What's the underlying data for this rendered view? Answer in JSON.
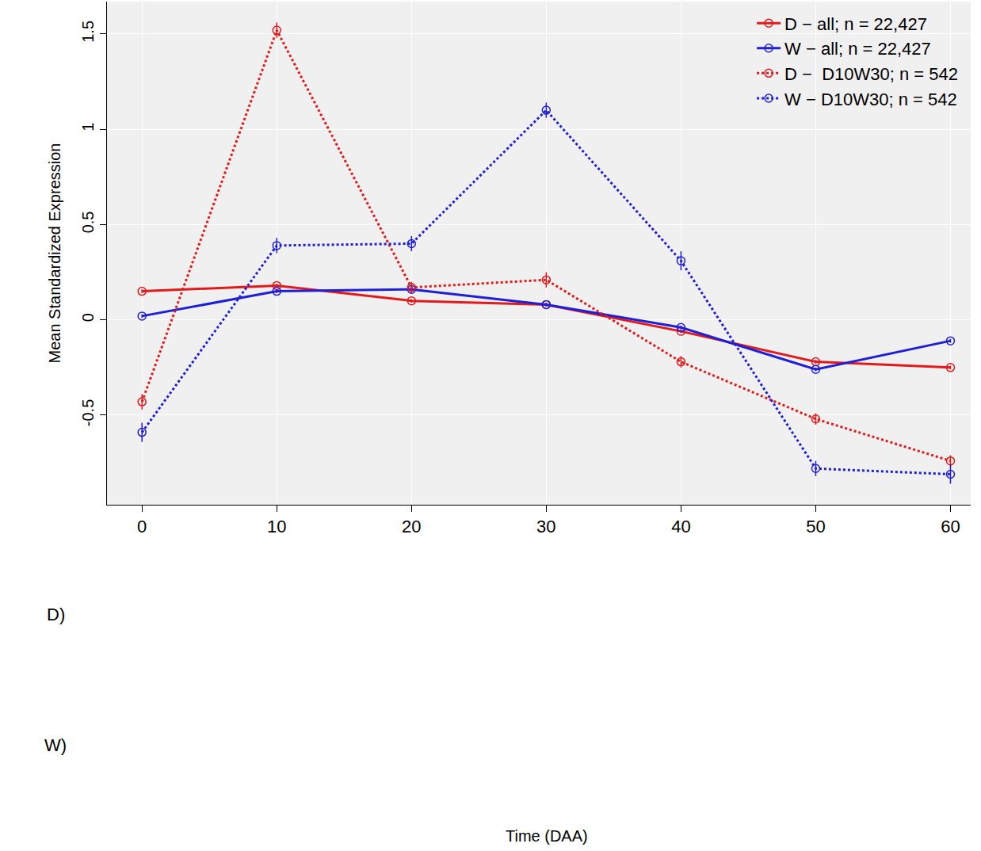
{
  "chart_data": {
    "type": "line",
    "x_label": "Time (DAA)",
    "y_label": "Mean Standardized Expression",
    "x": [
      0,
      10,
      20,
      30,
      40,
      50,
      60
    ],
    "xlim": [
      -2.6,
      61.5
    ],
    "xticks": [
      0,
      10,
      20,
      30,
      40,
      50,
      60
    ],
    "ylim": [
      -0.97,
      1.67
    ],
    "yticks": [
      -0.5,
      0,
      0.5,
      1,
      1.5
    ],
    "grid": true,
    "legend": "top right",
    "marker": "open circle",
    "row_labels": [
      "D)",
      "W)"
    ],
    "series": [
      {
        "name": "D − all; n = 22,427",
        "color": "#e31a1c",
        "line_style": "solid",
        "values": [
          0.15,
          0.18,
          0.1,
          0.08,
          -0.06,
          -0.22,
          -0.25
        ],
        "errors": [
          0.01,
          0.01,
          0.01,
          0.01,
          0.01,
          0.01,
          0.01
        ]
      },
      {
        "name": "W − all; n = 22,427",
        "color": "#1f1fd6",
        "line_style": "solid",
        "values": [
          0.02,
          0.15,
          0.16,
          0.08,
          -0.04,
          -0.26,
          -0.11
        ],
        "errors": [
          0.01,
          0.01,
          0.01,
          0.01,
          0.01,
          0.01,
          0.01
        ]
      },
      {
        "name": "D −  D10W30; n = 542",
        "color": "#e31a1c",
        "line_style": "dot",
        "values": [
          -0.43,
          1.52,
          0.17,
          0.21,
          -0.22,
          -0.52,
          -0.74
        ],
        "errors": [
          0.04,
          0.04,
          0.03,
          0.04,
          0.03,
          0.03,
          0.03
        ]
      },
      {
        "name": "W − D10W30; n = 542",
        "color": "#1f1fd6",
        "line_style": "dot",
        "values": [
          -0.59,
          0.39,
          0.4,
          1.1,
          0.31,
          -0.78,
          -0.81
        ],
        "errors": [
          0.05,
          0.04,
          0.04,
          0.04,
          0.05,
          0.04,
          0.05
        ]
      }
    ]
  }
}
